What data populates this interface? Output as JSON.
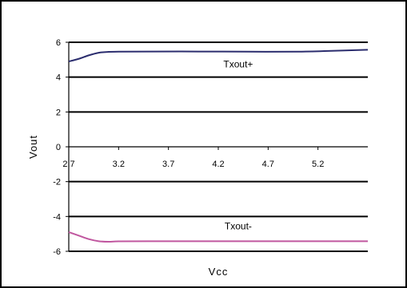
{
  "chart_data": {
    "type": "line",
    "xlabel": "Vcc",
    "ylabel": "Vout",
    "xlim": [
      2.7,
      5.7
    ],
    "ylim": [
      -6,
      6
    ],
    "x_ticks": [
      2.7,
      3.2,
      3.7,
      4.2,
      4.7,
      5.2
    ],
    "x_tick_labels": [
      "2.7",
      "3.2",
      "3.7",
      "4.2",
      "4.7",
      "5.2"
    ],
    "y_ticks": [
      6,
      4,
      2,
      0,
      -2,
      -4,
      -6
    ],
    "y_tick_labels": [
      "6",
      "4",
      "2",
      "0",
      "-2",
      "-4",
      "-6"
    ],
    "grid": "horizontal",
    "legend": "none",
    "series": [
      {
        "name": "Txout+",
        "color": "#2b2d6e",
        "x": [
          2.7,
          2.8,
          2.9,
          3.0,
          3.1,
          3.2,
          3.5,
          4.0,
          4.5,
          5.0,
          5.3,
          5.7
        ],
        "y": [
          4.9,
          5.05,
          5.25,
          5.4,
          5.45,
          5.46,
          5.47,
          5.47,
          5.46,
          5.46,
          5.5,
          5.57
        ]
      },
      {
        "name": "Txout-",
        "color": "#c0579f",
        "x": [
          2.7,
          2.8,
          2.9,
          3.0,
          3.1,
          3.2,
          3.5,
          4.0,
          4.5,
          5.0,
          5.3,
          5.7
        ],
        "y": [
          -4.9,
          -5.1,
          -5.3,
          -5.42,
          -5.45,
          -5.43,
          -5.42,
          -5.42,
          -5.42,
          -5.42,
          -5.42,
          -5.42
        ]
      }
    ],
    "annotations": [
      {
        "text": "Txout+",
        "x": 4.4,
        "y": 4.55
      },
      {
        "text": "Txout-",
        "x": 4.4,
        "y": -4.75
      }
    ]
  }
}
